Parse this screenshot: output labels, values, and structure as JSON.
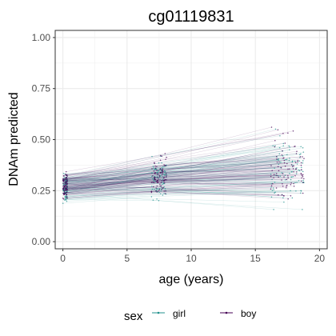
{
  "chart_data": {
    "type": "line",
    "title": "cg01119831",
    "xlabel": "age (years)",
    "ylabel": "DNAm predicted",
    "xlim": [
      -0.6,
      20.6
    ],
    "ylim": [
      -0.035,
      1.035
    ],
    "x_ticks": [
      0,
      5,
      10,
      15,
      20
    ],
    "x_tick_labels": [
      "0",
      "5",
      "10",
      "15",
      "20"
    ],
    "y_ticks": [
      0,
      0.25,
      0.5,
      0.75,
      1
    ],
    "y_tick_labels": [
      "0.00",
      "0.25",
      "0.50",
      "0.75",
      "1.00"
    ],
    "grid": true,
    "legend": {
      "title": "sex",
      "position": "bottom",
      "entries": [
        {
          "label": "girl",
          "color": "#21908C"
        },
        {
          "label": "boy",
          "color": "#440154"
        }
      ]
    },
    "series": [
      {
        "name": "girl",
        "color": "#21908C",
        "x": [
          0,
          7.5,
          17.5
        ],
        "y": [
          0.265,
          0.305,
          0.345
        ],
        "y_spread": [
          0.03,
          0.028,
          0.028
        ]
      },
      {
        "name": "boy",
        "color": "#440154",
        "x": [
          0,
          7.5,
          17.5
        ],
        "y": [
          0.27,
          0.315,
          0.355
        ],
        "y_spread": [
          0.03,
          0.028,
          0.028
        ]
      }
    ],
    "observation_ages": [
      0,
      7.5,
      17.5
    ]
  }
}
